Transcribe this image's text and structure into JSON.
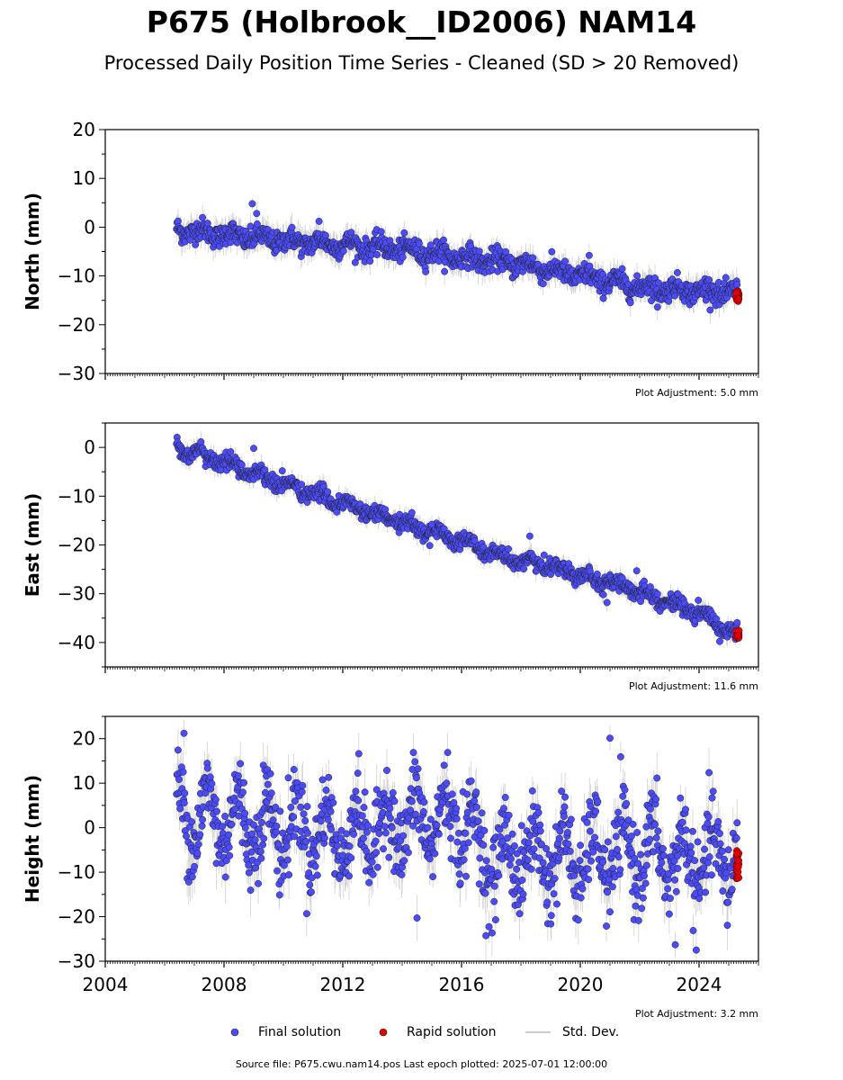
{
  "header": {
    "title": "P675 (Holbrook__ID2006) NAM14",
    "subtitle": "Processed Daily Position Time Series - Cleaned (SD > 20 Removed)"
  },
  "legend": {
    "final_label": "Final solution",
    "rapid_label": "Rapid solution",
    "std_label": "Std. Dev."
  },
  "footer": {
    "source": "Source file: P675.cwu.nam14.pos  Last epoch plotted: 2025-07-01 12:00:00"
  },
  "colors": {
    "final": "#4b4bff",
    "rapid": "#e00000",
    "std": "#9a9a9a",
    "marker_edge": "#222222"
  },
  "chart_data": [
    {
      "type": "scatter",
      "ylabel": "North (mm)",
      "xlim": [
        2004,
        2026
      ],
      "ylim": [
        -30,
        20
      ],
      "yticks": [
        20,
        10,
        0,
        -10,
        -20,
        -30
      ],
      "adjustment": "Plot Adjustment: 5.0 mm",
      "trend_points": [
        [
          2006.4,
          -0.5
        ],
        [
          2008.0,
          -1.5
        ],
        [
          2010.0,
          -2.8
        ],
        [
          2012.0,
          -3.6
        ],
        [
          2014.0,
          -4.5
        ],
        [
          2016.0,
          -6.2
        ],
        [
          2018.0,
          -7.6
        ],
        [
          2020.0,
          -10.0
        ],
        [
          2022.0,
          -12.3
        ],
        [
          2024.0,
          -13.0
        ],
        [
          2025.2,
          -13.5
        ]
      ],
      "scatter_sd": 1.1,
      "outliers": [
        [
          2008.95,
          4.8
        ],
        [
          2009.1,
          2.8
        ],
        [
          2020.3,
          -5.8
        ],
        [
          2022.6,
          -16.4
        ],
        [
          2011.2,
          1.2
        ]
      ],
      "rapid": {
        "x0": 2025.25,
        "x1": 2025.35,
        "y": -14.2,
        "spread": 1.2
      },
      "series": [
        {
          "name": "Final solution",
          "x_range": [
            2006.4,
            2025.3
          ]
        },
        {
          "name": "Rapid solution",
          "x_range": [
            2025.25,
            2025.35
          ]
        }
      ]
    },
    {
      "type": "scatter",
      "ylabel": "East (mm)",
      "xlim": [
        2004,
        2026
      ],
      "ylim": [
        -45,
        5
      ],
      "yticks": [
        0,
        -10,
        -20,
        -30,
        -40
      ],
      "adjustment": "Plot Adjustment: 11.6 mm",
      "trend_points": [
        [
          2006.4,
          0.0
        ],
        [
          2008.0,
          -3.0
        ],
        [
          2010.0,
          -7.5
        ],
        [
          2012.0,
          -11.5
        ],
        [
          2014.0,
          -15.5
        ],
        [
          2016.0,
          -19.0
        ],
        [
          2017.5,
          -23.0
        ],
        [
          2018.5,
          -23.5
        ],
        [
          2020.0,
          -26.0
        ],
        [
          2022.0,
          -29.5
        ],
        [
          2024.0,
          -34.0
        ],
        [
          2025.2,
          -38.3
        ]
      ],
      "scatter_sd": 0.8,
      "outliers": [
        [
          2009.0,
          -0.2
        ],
        [
          2018.3,
          -18.2
        ],
        [
          2020.9,
          -31.8
        ],
        [
          2021.9,
          -25.3
        ],
        [
          2015.0,
          -15.8
        ]
      ],
      "rapid": {
        "x0": 2025.25,
        "x1": 2025.35,
        "y": -38.3,
        "spread": 0.8
      },
      "series": [
        {
          "name": "Final solution",
          "x_range": [
            2006.4,
            2025.3
          ]
        },
        {
          "name": "Rapid solution",
          "x_range": [
            2025.25,
            2025.35
          ]
        }
      ]
    },
    {
      "type": "scatter",
      "ylabel": "Height (mm)",
      "xlim": [
        2004,
        2026
      ],
      "ylim": [
        -30,
        25
      ],
      "yticks": [
        20,
        10,
        0,
        -10,
        -20,
        -30
      ],
      "xticks": [
        2004,
        2008,
        2012,
        2016,
        2020,
        2024
      ],
      "adjustment": "Plot Adjustment: 3.2 mm",
      "trend_points": [
        [
          2006.4,
          3.0
        ],
        [
          2008.0,
          2.0
        ],
        [
          2010.0,
          0.0
        ],
        [
          2012.0,
          -2.0
        ],
        [
          2014.0,
          1.0
        ],
        [
          2016.0,
          2.0
        ],
        [
          2017.0,
          -8.0
        ],
        [
          2018.0,
          -6.0
        ],
        [
          2020.0,
          -7.0
        ],
        [
          2022.0,
          -5.0
        ],
        [
          2024.0,
          -8.0
        ],
        [
          2025.2,
          -6.0
        ]
      ],
      "seasonal_amplitude": 6.5,
      "scatter_sd": 4.5,
      "outliers": [
        [
          2006.65,
          21.2
        ],
        [
          2021.0,
          20.1
        ],
        [
          2014.5,
          -20.3
        ],
        [
          2023.2,
          -26.3
        ]
      ],
      "rapid": {
        "x0": 2025.25,
        "x1": 2025.35,
        "y": -8.0,
        "spread": 3.5
      },
      "series": [
        {
          "name": "Final solution",
          "x_range": [
            2006.4,
            2025.3
          ]
        },
        {
          "name": "Rapid solution",
          "x_range": [
            2025.25,
            2025.35
          ]
        }
      ]
    }
  ]
}
